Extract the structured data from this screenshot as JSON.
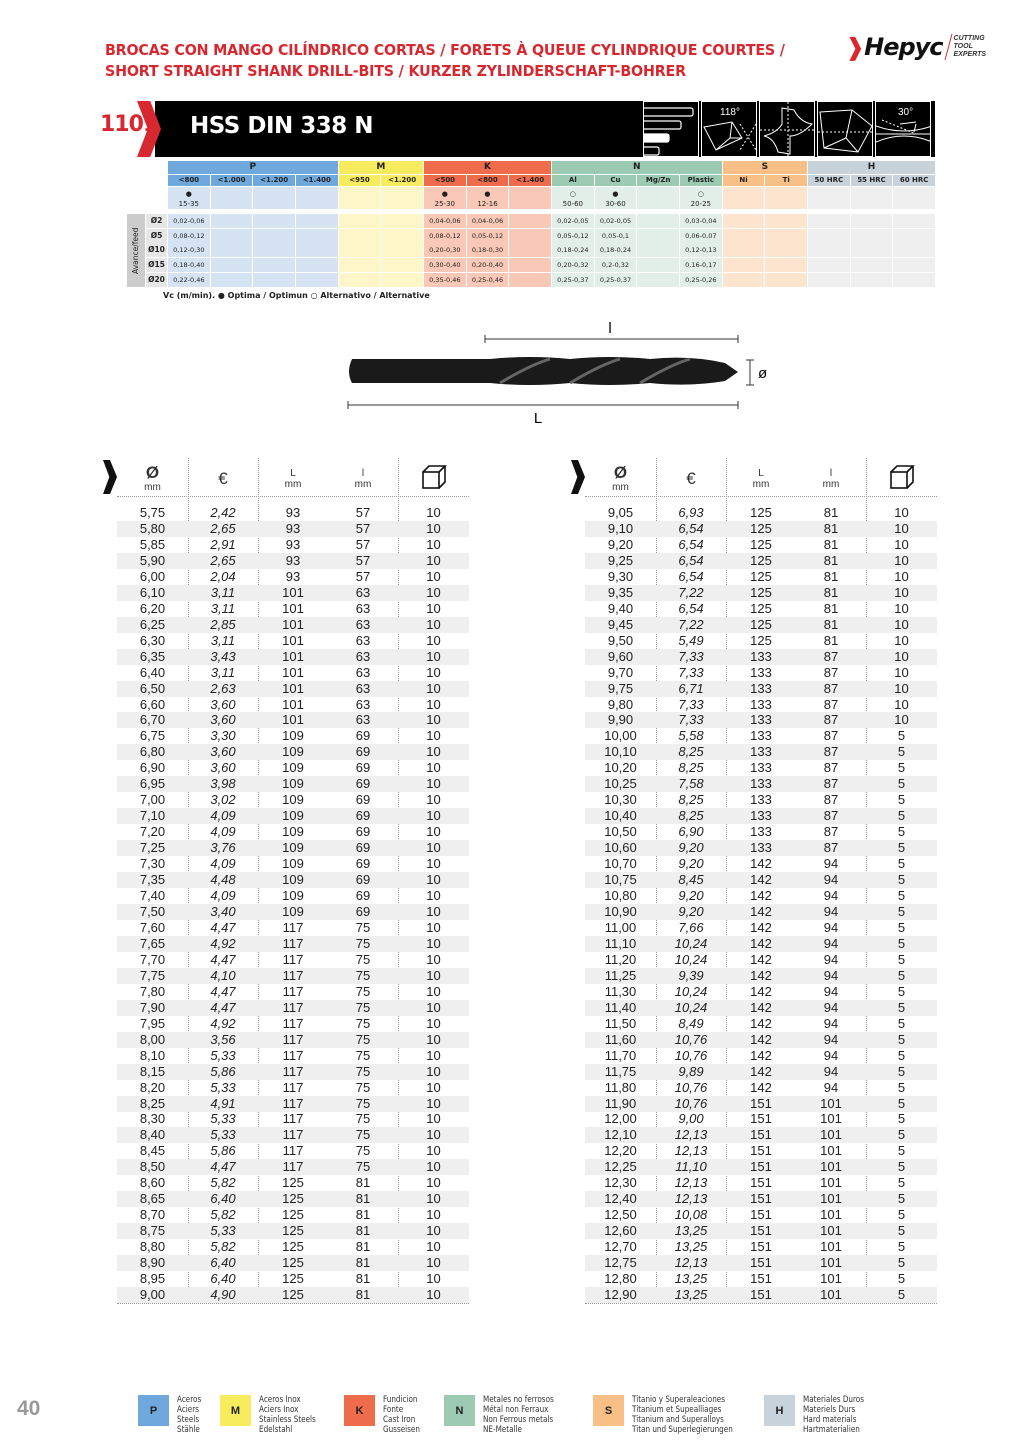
{
  "header": {
    "title_line1": "BROCAS CON MANGO CILÍNDRICO CORTAS / FORETS À QUEUE CYLINDRIQUE COURTES /",
    "title_line2": "SHORT STRAIGHT SHANK DRILL-BITS / KURZER ZYLINDERSCHAFT-BOHRER",
    "logo_text": "Hepyc",
    "logo_tagline": [
      "CUTTING",
      "TOOL",
      "EXPERTS"
    ],
    "brand_color": "#d7282f"
  },
  "banner": {
    "code": "1101",
    "product": "HSS DIN 338 N",
    "icons": [
      {
        "name": "length-series-icon",
        "label": ""
      },
      {
        "name": "point-angle-icon",
        "label": "118°"
      },
      {
        "name": "cross-section-icon",
        "label": ""
      },
      {
        "name": "split-point-icon",
        "label": ""
      },
      {
        "name": "helix-angle-icon",
        "label": "30°"
      }
    ]
  },
  "materials": {
    "groups": [
      {
        "key": "P",
        "span": 4,
        "head": "#6fa8dc",
        "sub": "#6fa8dc",
        "body": "#d5e3f3"
      },
      {
        "key": "M",
        "span": 2,
        "head": "#f6ec5e",
        "sub": "#f6ec5e",
        "body": "#fcf6c8"
      },
      {
        "key": "K",
        "span": 3,
        "head": "#ee6b4b",
        "sub": "#ee6b4b",
        "body": "#f9c8b6"
      },
      {
        "key": "N",
        "span": 4,
        "head": "#9ccab3",
        "sub": "#9ccab3",
        "body": "#e2efe8"
      },
      {
        "key": "S",
        "span": 2,
        "head": "#f8bf87",
        "sub": "#f8bf87",
        "body": "#fde4cf"
      },
      {
        "key": "H",
        "span": 3,
        "head": "#c8d2db",
        "sub": "#c8d2db",
        "body": "#efefef"
      }
    ],
    "subheaders": [
      "<800",
      "<1.000",
      "<1.200",
      "<1.400",
      "<950",
      "<1.200",
      "<500",
      "<800",
      "<1.400",
      "Al",
      "Cu",
      "Mg/Zn",
      "Plastic",
      "Ni",
      "Ti",
      "50 HRC",
      "55 HRC",
      "60 HRC"
    ],
    "vc": [
      {
        "sym": "●",
        "val": "15-35"
      },
      null,
      null,
      null,
      null,
      null,
      {
        "sym": "●",
        "val": "25-30"
      },
      {
        "sym": "●",
        "val": "12-16"
      },
      null,
      {
        "sym": "○",
        "val": "50-60"
      },
      {
        "sym": "●",
        "val": "30-60"
      },
      null,
      {
        "sym": "○",
        "val": "20-25"
      },
      null,
      null,
      null,
      null,
      null
    ],
    "feed_label": "Avance/feed",
    "feed_rows": [
      {
        "d": "Ø2",
        "v": [
          "0,02-0,06",
          "",
          "",
          "",
          "",
          "",
          "0,04-0,06",
          "0,04-0,06",
          "",
          "0,02-0,05",
          "0,02-0,05",
          "",
          "0,03-0,04",
          "",
          "",
          "",
          "",
          ""
        ]
      },
      {
        "d": "Ø5",
        "v": [
          "0,08-0,12",
          "",
          "",
          "",
          "",
          "",
          "0,08-0,12",
          "0,05-0,12",
          "",
          "0,05-0,12",
          "0,05-0,1",
          "",
          "0,06-0,07",
          "",
          "",
          "",
          "",
          ""
        ]
      },
      {
        "d": "Ø10",
        "v": [
          "0,12-0,30",
          "",
          "",
          "",
          "",
          "",
          "0,20-0,30",
          "0,18-0,30",
          "",
          "0,18-0,24",
          "0,18-0,24",
          "",
          "0,12-0,13",
          "",
          "",
          "",
          "",
          ""
        ]
      },
      {
        "d": "Ø15",
        "v": [
          "0,18-0,40",
          "",
          "",
          "",
          "",
          "",
          "0,30-0,40",
          "0,20-0,40",
          "",
          "0,20-0,32",
          "0,2-0,32",
          "",
          "0,16-0,17",
          "",
          "",
          "",
          "",
          ""
        ]
      },
      {
        "d": "Ø20",
        "v": [
          "0,22-0,46",
          "",
          "",
          "",
          "",
          "",
          "0,35-0,46",
          "0,25-0,46",
          "",
          "0,25-0,37",
          "0,25-0,37",
          "",
          "0,25-0,26",
          "",
          "",
          "",
          "",
          ""
        ]
      }
    ],
    "footnote": "Vc (m/min). ● Optima / Optimun  ○ Alternativo / Alternative"
  },
  "drawing": {
    "l": "l",
    "L": "L",
    "d": "ø"
  },
  "columns": {
    "diameter": "Ø",
    "diameter_unit": "mm",
    "price": "€",
    "L": "L",
    "L_unit": "mm",
    "l": "l",
    "l_unit": "mm",
    "pack_icon": "box-icon"
  },
  "table_left": [
    [
      "5,75",
      "2,42",
      "93",
      "57",
      "10"
    ],
    [
      "5,80",
      "2,65",
      "93",
      "57",
      "10"
    ],
    [
      "5,85",
      "2,91",
      "93",
      "57",
      "10"
    ],
    [
      "5,90",
      "2,65",
      "93",
      "57",
      "10"
    ],
    [
      "6,00",
      "2,04",
      "93",
      "57",
      "10"
    ],
    [
      "6,10",
      "3,11",
      "101",
      "63",
      "10"
    ],
    [
      "6,20",
      "3,11",
      "101",
      "63",
      "10"
    ],
    [
      "6,25",
      "2,85",
      "101",
      "63",
      "10"
    ],
    [
      "6,30",
      "3,11",
      "101",
      "63",
      "10"
    ],
    [
      "6,35",
      "3,43",
      "101",
      "63",
      "10"
    ],
    [
      "6,40",
      "3,11",
      "101",
      "63",
      "10"
    ],
    [
      "6,50",
      "2,63",
      "101",
      "63",
      "10"
    ],
    [
      "6,60",
      "3,60",
      "101",
      "63",
      "10"
    ],
    [
      "6,70",
      "3,60",
      "101",
      "63",
      "10"
    ],
    [
      "6,75",
      "3,30",
      "109",
      "69",
      "10"
    ],
    [
      "6,80",
      "3,60",
      "109",
      "69",
      "10"
    ],
    [
      "6,90",
      "3,60",
      "109",
      "69",
      "10"
    ],
    [
      "6,95",
      "3,98",
      "109",
      "69",
      "10"
    ],
    [
      "7,00",
      "3,02",
      "109",
      "69",
      "10"
    ],
    [
      "7,10",
      "4,09",
      "109",
      "69",
      "10"
    ],
    [
      "7,20",
      "4,09",
      "109",
      "69",
      "10"
    ],
    [
      "7,25",
      "3,76",
      "109",
      "69",
      "10"
    ],
    [
      "7,30",
      "4,09",
      "109",
      "69",
      "10"
    ],
    [
      "7,35",
      "4,48",
      "109",
      "69",
      "10"
    ],
    [
      "7,40",
      "4,09",
      "109",
      "69",
      "10"
    ],
    [
      "7,50",
      "3,40",
      "109",
      "69",
      "10"
    ],
    [
      "7,60",
      "4,47",
      "117",
      "75",
      "10"
    ],
    [
      "7,65",
      "4,92",
      "117",
      "75",
      "10"
    ],
    [
      "7,70",
      "4,47",
      "117",
      "75",
      "10"
    ],
    [
      "7,75",
      "4,10",
      "117",
      "75",
      "10"
    ],
    [
      "7,80",
      "4,47",
      "117",
      "75",
      "10"
    ],
    [
      "7,90",
      "4,47",
      "117",
      "75",
      "10"
    ],
    [
      "7,95",
      "4,92",
      "117",
      "75",
      "10"
    ],
    [
      "8,00",
      "3,56",
      "117",
      "75",
      "10"
    ],
    [
      "8,10",
      "5,33",
      "117",
      "75",
      "10"
    ],
    [
      "8,15",
      "5,86",
      "117",
      "75",
      "10"
    ],
    [
      "8,20",
      "5,33",
      "117",
      "75",
      "10"
    ],
    [
      "8,25",
      "4,91",
      "117",
      "75",
      "10"
    ],
    [
      "8,30",
      "5,33",
      "117",
      "75",
      "10"
    ],
    [
      "8,40",
      "5,33",
      "117",
      "75",
      "10"
    ],
    [
      "8,45",
      "5,86",
      "117",
      "75",
      "10"
    ],
    [
      "8,50",
      "4,47",
      "117",
      "75",
      "10"
    ],
    [
      "8,60",
      "5,82",
      "125",
      "81",
      "10"
    ],
    [
      "8,65",
      "6,40",
      "125",
      "81",
      "10"
    ],
    [
      "8,70",
      "5,82",
      "125",
      "81",
      "10"
    ],
    [
      "8,75",
      "5,33",
      "125",
      "81",
      "10"
    ],
    [
      "8,80",
      "5,82",
      "125",
      "81",
      "10"
    ],
    [
      "8,90",
      "6,40",
      "125",
      "81",
      "10"
    ],
    [
      "8,95",
      "6,40",
      "125",
      "81",
      "10"
    ],
    [
      "9,00",
      "4,90",
      "125",
      "81",
      "10"
    ]
  ],
  "table_right": [
    [
      "9,05",
      "6,93",
      "125",
      "81",
      "10"
    ],
    [
      "9,10",
      "6,54",
      "125",
      "81",
      "10"
    ],
    [
      "9,20",
      "6,54",
      "125",
      "81",
      "10"
    ],
    [
      "9,25",
      "6,54",
      "125",
      "81",
      "10"
    ],
    [
      "9,30",
      "6,54",
      "125",
      "81",
      "10"
    ],
    [
      "9,35",
      "7,22",
      "125",
      "81",
      "10"
    ],
    [
      "9,40",
      "6,54",
      "125",
      "81",
      "10"
    ],
    [
      "9,45",
      "7,22",
      "125",
      "81",
      "10"
    ],
    [
      "9,50",
      "5,49",
      "125",
      "81",
      "10"
    ],
    [
      "9,60",
      "7,33",
      "133",
      "87",
      "10"
    ],
    [
      "9,70",
      "7,33",
      "133",
      "87",
      "10"
    ],
    [
      "9,75",
      "6,71",
      "133",
      "87",
      "10"
    ],
    [
      "9,80",
      "7,33",
      "133",
      "87",
      "10"
    ],
    [
      "9,90",
      "7,33",
      "133",
      "87",
      "10"
    ],
    [
      "10,00",
      "5,58",
      "133",
      "87",
      "5"
    ],
    [
      "10,10",
      "8,25",
      "133",
      "87",
      "5"
    ],
    [
      "10,20",
      "8,25",
      "133",
      "87",
      "5"
    ],
    [
      "10,25",
      "7,58",
      "133",
      "87",
      "5"
    ],
    [
      "10,30",
      "8,25",
      "133",
      "87",
      "5"
    ],
    [
      "10,40",
      "8,25",
      "133",
      "87",
      "5"
    ],
    [
      "10,50",
      "6,90",
      "133",
      "87",
      "5"
    ],
    [
      "10,60",
      "9,20",
      "133",
      "87",
      "5"
    ],
    [
      "10,70",
      "9,20",
      "142",
      "94",
      "5"
    ],
    [
      "10,75",
      "8,45",
      "142",
      "94",
      "5"
    ],
    [
      "10,80",
      "9,20",
      "142",
      "94",
      "5"
    ],
    [
      "10,90",
      "9,20",
      "142",
      "94",
      "5"
    ],
    [
      "11,00",
      "7,66",
      "142",
      "94",
      "5"
    ],
    [
      "11,10",
      "10,24",
      "142",
      "94",
      "5"
    ],
    [
      "11,20",
      "10,24",
      "142",
      "94",
      "5"
    ],
    [
      "11,25",
      "9,39",
      "142",
      "94",
      "5"
    ],
    [
      "11,30",
      "10,24",
      "142",
      "94",
      "5"
    ],
    [
      "11,40",
      "10,24",
      "142",
      "94",
      "5"
    ],
    [
      "11,50",
      "8,49",
      "142",
      "94",
      "5"
    ],
    [
      "11,60",
      "10,76",
      "142",
      "94",
      "5"
    ],
    [
      "11,70",
      "10,76",
      "142",
      "94",
      "5"
    ],
    [
      "11,75",
      "9,89",
      "142",
      "94",
      "5"
    ],
    [
      "11,80",
      "10,76",
      "142",
      "94",
      "5"
    ],
    [
      "11,90",
      "10,76",
      "151",
      "101",
      "5"
    ],
    [
      "12,00",
      "9,00",
      "151",
      "101",
      "5"
    ],
    [
      "12,10",
      "12,13",
      "151",
      "101",
      "5"
    ],
    [
      "12,20",
      "12,13",
      "151",
      "101",
      "5"
    ],
    [
      "12,25",
      "11,10",
      "151",
      "101",
      "5"
    ],
    [
      "12,30",
      "12,13",
      "151",
      "101",
      "5"
    ],
    [
      "12,40",
      "12,13",
      "151",
      "101",
      "5"
    ],
    [
      "12,50",
      "10,08",
      "151",
      "101",
      "5"
    ],
    [
      "12,60",
      "13,25",
      "151",
      "101",
      "5"
    ],
    [
      "12,70",
      "13,25",
      "151",
      "101",
      "5"
    ],
    [
      "12,75",
      "12,13",
      "151",
      "101",
      "5"
    ],
    [
      "12,80",
      "13,25",
      "151",
      "101",
      "5"
    ],
    [
      "12,90",
      "13,25",
      "151",
      "101",
      "5"
    ]
  ],
  "footer": {
    "page_number": "40",
    "legend": [
      {
        "key": "P",
        "color": "#6fa8dc",
        "lines": [
          "Aceros",
          "Aciers",
          "Steels",
          "Stähle"
        ]
      },
      {
        "key": "M",
        "color": "#f6ec5e",
        "lines": [
          "Aceros Inox",
          "Aciers Inox",
          "Stainless Steels",
          "Edelstahl"
        ]
      },
      {
        "key": "K",
        "color": "#ee6b4b",
        "lines": [
          "Fundicion",
          "Fonte",
          "Cast Iron",
          "Gusseisen"
        ]
      },
      {
        "key": "N",
        "color": "#9ccab3",
        "lines": [
          "Metales no ferrosos",
          "Métal non Ferraux",
          "Non Ferrous metals",
          "NE-Metalle"
        ]
      },
      {
        "key": "S",
        "color": "#f8bf87",
        "lines": [
          "Titanio y Superaleaciones",
          "Titanium et Supealliages",
          "Titanium and Superalloys",
          "Titan und Superlegierungen"
        ]
      },
      {
        "key": "H",
        "color": "#c8d2db",
        "lines": [
          "Materiales Duros",
          "Materiels Durs",
          "Hard materials",
          "Hartmaterialien"
        ]
      }
    ]
  }
}
